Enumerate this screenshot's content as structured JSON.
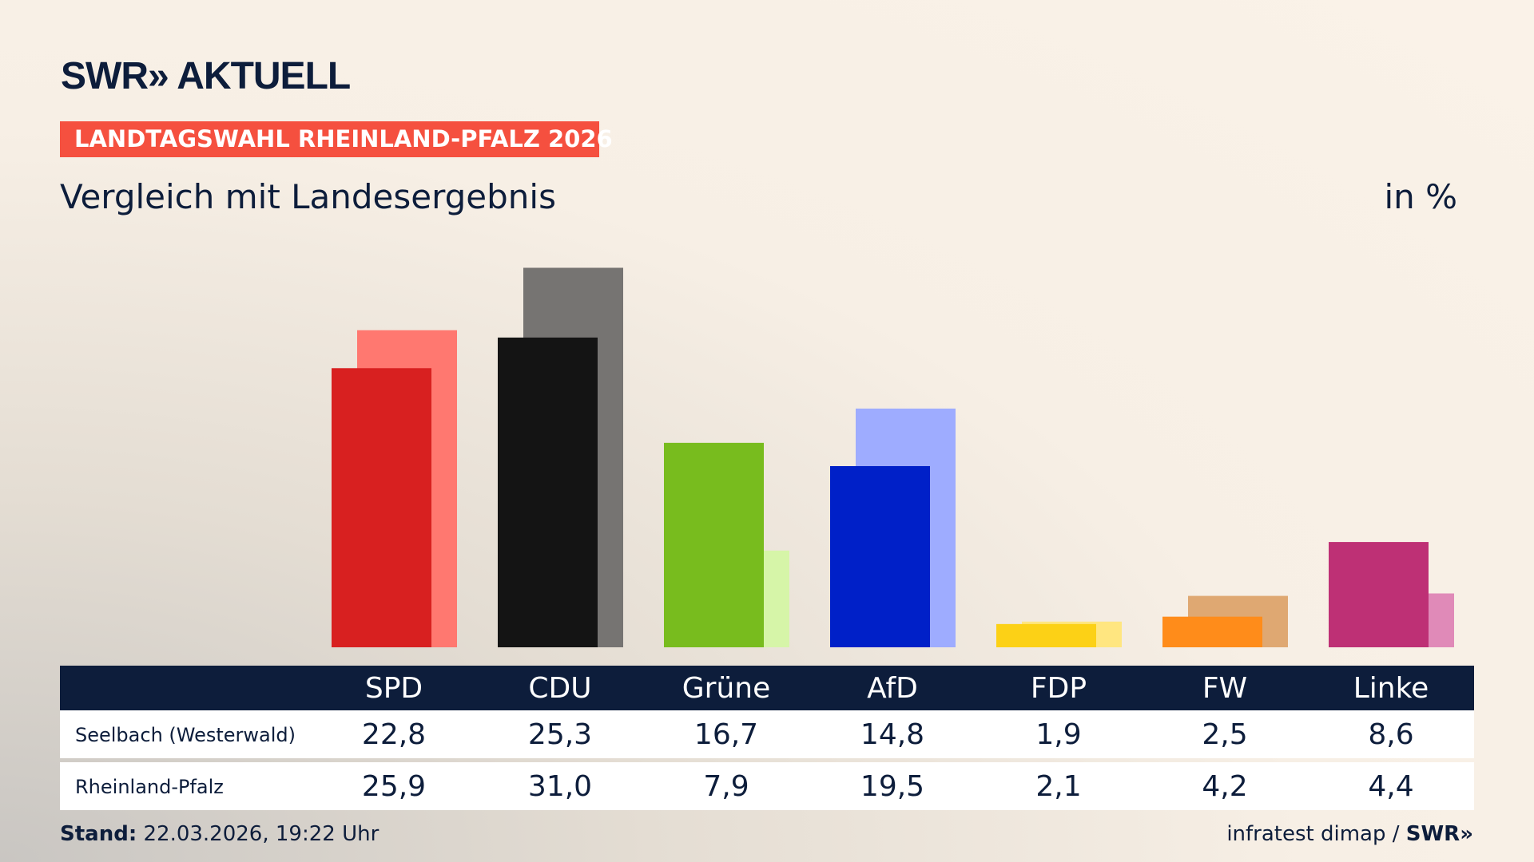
{
  "brand": {
    "logo": "SWR» AKTUELL"
  },
  "badge": "LANDTAGSWAHL RHEINLAND-PFALZ 2026",
  "subtitle": "Vergleich mit Landesergebnis",
  "unit": "in %",
  "footer": {
    "stand_label": "Stand:",
    "stand_value": "22.03.2026, 19:22 Uhr",
    "source": "infratest dimap / ",
    "source_logo": "SWR»"
  },
  "chart_data": {
    "type": "bar",
    "categories": [
      "SPD",
      "CDU",
      "Grüne",
      "AfD",
      "FDP",
      "FW",
      "Linke"
    ],
    "series": [
      {
        "name": "Seelbach (Westerwald)",
        "values": [
          22.8,
          25.3,
          16.7,
          14.8,
          1.9,
          2.5,
          8.6
        ],
        "display": [
          "22,8",
          "25,3",
          "16,7",
          "14,8",
          "1,9",
          "2,5",
          "8,6"
        ],
        "colors": [
          "#d82020",
          "#141414",
          "#78bc1e",
          "#0020c8",
          "#fcd116",
          "#ff8c1a",
          "#be3075"
        ]
      },
      {
        "name": "Rheinland-Pfalz",
        "values": [
          25.9,
          31.0,
          7.9,
          19.5,
          2.1,
          4.2,
          4.4
        ],
        "display": [
          "25,9",
          "31,0",
          "7,9",
          "19,5",
          "2,1",
          "4,2",
          "4,4"
        ],
        "colors": [
          "#ff7870",
          "#767472",
          "#d6f5a8",
          "#9eacff",
          "#ffe680",
          "#dfa872",
          "#e08ab8"
        ]
      }
    ],
    "ylim": [
      0,
      31
    ],
    "grid": false
  }
}
